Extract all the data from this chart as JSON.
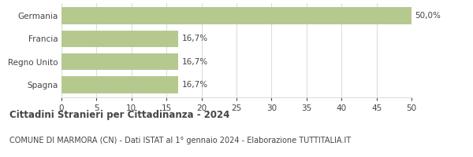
{
  "categories": [
    "Spagna",
    "Regno Unito",
    "Francia",
    "Germania"
  ],
  "values": [
    16.7,
    16.7,
    16.7,
    50.0
  ],
  "labels": [
    "16,7%",
    "16,7%",
    "16,7%",
    "50,0%"
  ],
  "bar_color": "#b5c98e",
  "xlim": [
    0,
    50
  ],
  "xticks": [
    0,
    5,
    10,
    15,
    20,
    25,
    30,
    35,
    40,
    45,
    50
  ],
  "title_bold": "Cittadini Stranieri per Cittadinanza - 2024",
  "subtitle": "COMUNE DI MARMORA (CN) - Dati ISTAT al 1° gennaio 2024 - Elaborazione TUTTITALIA.IT",
  "title_fontsize": 8.5,
  "subtitle_fontsize": 7,
  "label_fontsize": 7.5,
  "tick_fontsize": 7.5,
  "ytick_fontsize": 7.5,
  "background_color": "#ffffff",
  "grid_color": "#dddddd",
  "text_color": "#444444"
}
